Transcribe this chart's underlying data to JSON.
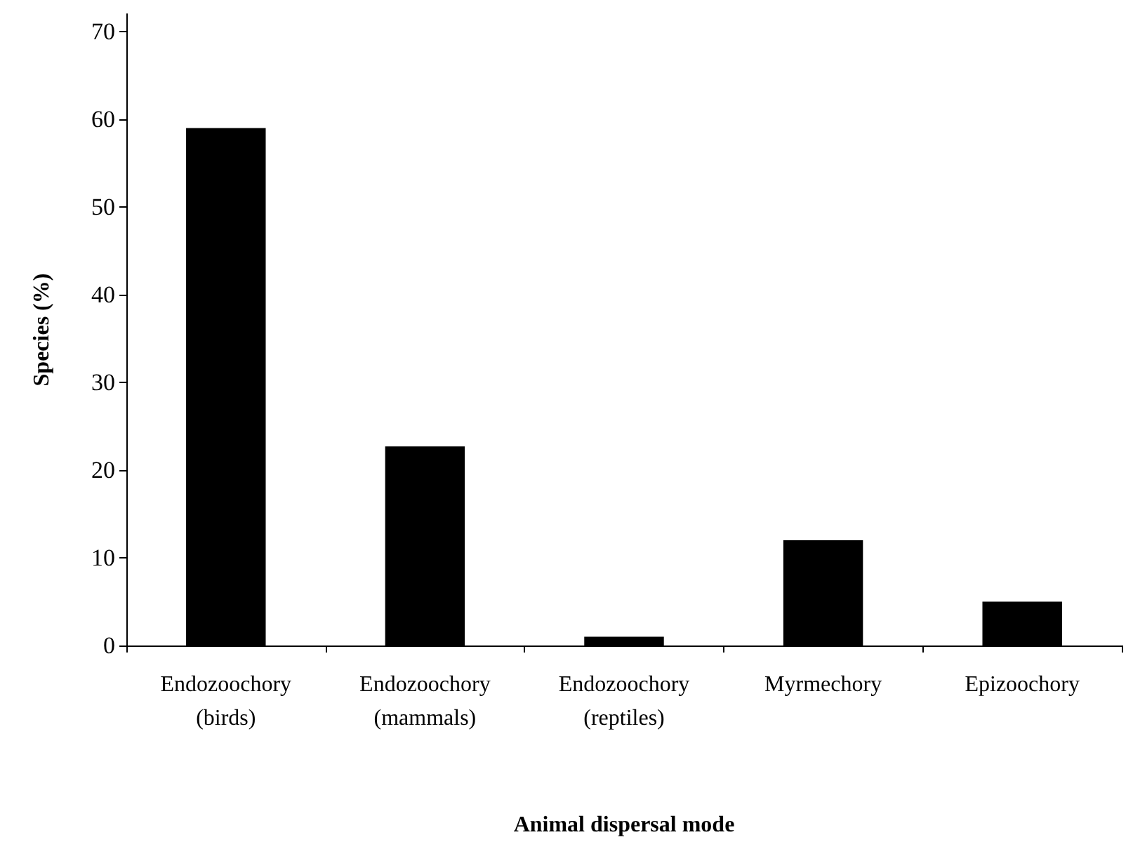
{
  "chart_data": {
    "type": "bar",
    "xlabel": "Animal dispersal mode",
    "ylabel": "Species (%)",
    "categories": [
      "Endozoochory\n(birds)",
      "Endozoochory\n(mammals)",
      "Endozoochory\n(reptiles)",
      "Myrmechory",
      "Epizoochory"
    ],
    "values": [
      59,
      22.7,
      1,
      12,
      5
    ],
    "color": "#000000",
    "ylim": [
      0,
      72
    ],
    "yticks": [
      0,
      10,
      20,
      30,
      40,
      50,
      60,
      70
    ],
    "grid": false
  }
}
